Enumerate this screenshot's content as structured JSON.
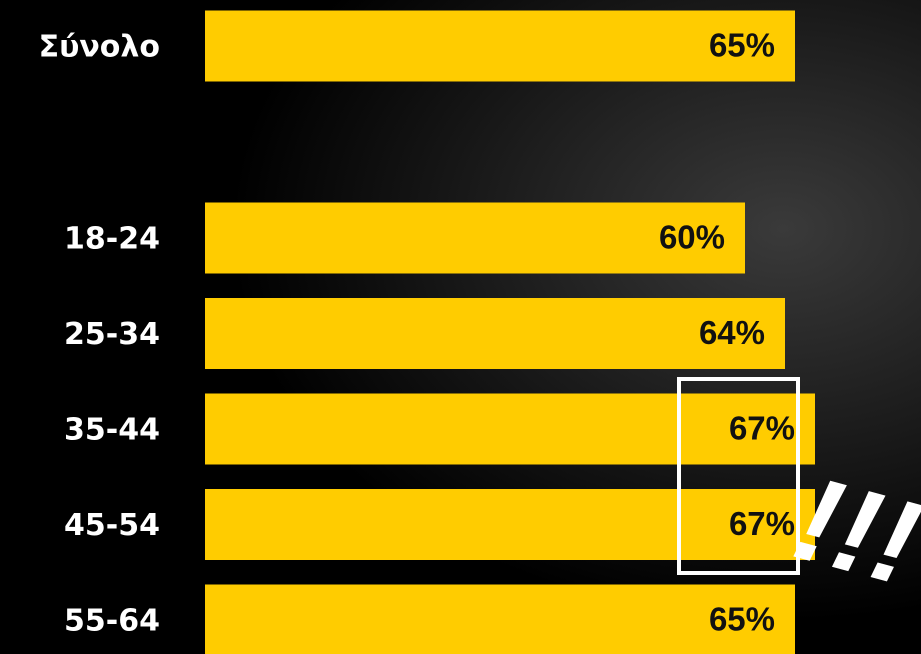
{
  "chart_data": {
    "type": "barh",
    "categories": [
      "Σύνολο",
      "18-24",
      "25-34",
      "35-44",
      "45-54",
      "55-64"
    ],
    "values": [
      65,
      60,
      64,
      67,
      67,
      65
    ],
    "value_labels": [
      "65%",
      "60%",
      "64%",
      "67%",
      "67%",
      "65%"
    ],
    "color": "#ffcc00",
    "xlim": [
      6,
      75
    ],
    "annotation": "!!!"
  }
}
